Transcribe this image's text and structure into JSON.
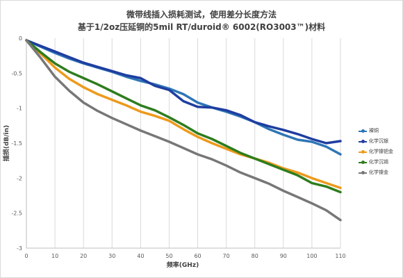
{
  "chart_data": {
    "type": "line",
    "title_line1": "微带线插入损耗测试，使用差分长度方法",
    "title_line2": "基于1/2oz压延铜的5mil RT/duroid® 6002(RO3003™)材料",
    "xlabel": "频率(GHz)",
    "ylabel": "插损(dB/in)",
    "xlim": [
      0,
      110
    ],
    "ylim": [
      -3,
      0
    ],
    "x_ticks": [
      "0",
      "10",
      "20",
      "30",
      "40",
      "50",
      "60",
      "70",
      "80",
      "90",
      "100",
      "110"
    ],
    "y_ticks": [
      "0",
      "-0.5",
      "-1",
      "-1.5",
      "-2",
      "-2.5",
      "-3"
    ],
    "grid": "vertical",
    "legend_position": "right",
    "x": [
      0,
      5,
      10,
      15,
      20,
      25,
      30,
      35,
      40,
      45,
      50,
      55,
      60,
      65,
      70,
      75,
      80,
      85,
      90,
      95,
      100,
      105,
      110
    ],
    "series": [
      {
        "name": "裸铜",
        "color": "#2e75b6",
        "values": [
          -0.03,
          -0.12,
          -0.21,
          -0.29,
          -0.36,
          -0.42,
          -0.48,
          -0.55,
          -0.61,
          -0.66,
          -0.72,
          -0.8,
          -0.92,
          -0.99,
          -1.05,
          -1.12,
          -1.2,
          -1.3,
          -1.38,
          -1.45,
          -1.48,
          -1.55,
          -1.66
        ]
      },
      {
        "name": "化学沉银",
        "color": "#1f3ea0",
        "values": [
          -0.03,
          -0.11,
          -0.19,
          -0.27,
          -0.35,
          -0.41,
          -0.47,
          -0.53,
          -0.57,
          -0.68,
          -0.74,
          -0.9,
          -0.98,
          -0.99,
          -1.03,
          -1.1,
          -1.2,
          -1.26,
          -1.31,
          -1.37,
          -1.44,
          -1.5,
          -1.47
        ]
      },
      {
        "name": "化学镍钯金",
        "color": "#ed9a1c",
        "values": [
          -0.03,
          -0.22,
          -0.42,
          -0.58,
          -0.7,
          -0.8,
          -0.88,
          -0.96,
          -1.05,
          -1.11,
          -1.18,
          -1.3,
          -1.41,
          -1.5,
          -1.58,
          -1.66,
          -1.72,
          -1.78,
          -1.86,
          -1.92,
          -2.0,
          -2.07,
          -2.14
        ]
      },
      {
        "name": "化学沉锡",
        "color": "#2e7d1e",
        "values": [
          -0.03,
          -0.2,
          -0.36,
          -0.48,
          -0.57,
          -0.66,
          -0.76,
          -0.86,
          -0.96,
          -1.03,
          -1.13,
          -1.24,
          -1.36,
          -1.44,
          -1.54,
          -1.64,
          -1.72,
          -1.8,
          -1.88,
          -1.96,
          -2.07,
          -2.12,
          -2.2
        ]
      },
      {
        "name": "化学镍金",
        "color": "#777777",
        "values": [
          -0.03,
          -0.28,
          -0.55,
          -0.75,
          -0.92,
          -1.04,
          -1.14,
          -1.23,
          -1.32,
          -1.4,
          -1.48,
          -1.57,
          -1.66,
          -1.73,
          -1.82,
          -1.92,
          -2.0,
          -2.08,
          -2.18,
          -2.27,
          -2.36,
          -2.46,
          -2.6
        ]
      }
    ]
  }
}
